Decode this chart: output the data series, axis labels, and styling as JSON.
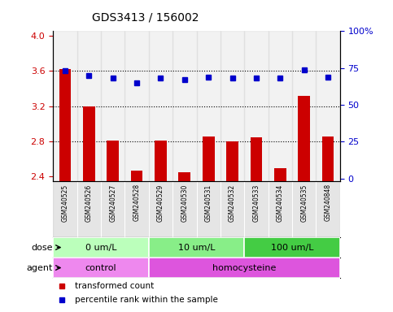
{
  "title": "GDS3413 / 156002",
  "samples": [
    "GSM240525",
    "GSM240526",
    "GSM240527",
    "GSM240528",
    "GSM240529",
    "GSM240530",
    "GSM240531",
    "GSM240532",
    "GSM240533",
    "GSM240534",
    "GSM240535",
    "GSM240848"
  ],
  "transformed_count": [
    3.62,
    3.2,
    2.81,
    2.47,
    2.81,
    2.45,
    2.86,
    2.8,
    2.85,
    2.5,
    3.32,
    2.86
  ],
  "percentile_rank": [
    73,
    70,
    68,
    65,
    68,
    67,
    69,
    68,
    68,
    68,
    74,
    69
  ],
  "ylim_left": [
    2.35,
    4.05
  ],
  "ylim_right": [
    -1.75,
    100
  ],
  "yticks_left": [
    2.4,
    2.8,
    3.2,
    3.6,
    4.0
  ],
  "yticks_right": [
    0,
    25,
    50,
    75,
    100
  ],
  "bar_color": "#cc0000",
  "dot_color": "#0000cc",
  "dose_groups": [
    {
      "label": "0 um/L",
      "start": 0,
      "end": 3,
      "color": "#bbffbb"
    },
    {
      "label": "10 um/L",
      "start": 4,
      "end": 7,
      "color": "#88ee88"
    },
    {
      "label": "100 um/L",
      "start": 8,
      "end": 11,
      "color": "#44cc44"
    }
  ],
  "agent_groups": [
    {
      "label": "control",
      "start": 0,
      "end": 3,
      "color": "#ee88ee"
    },
    {
      "label": "homocysteine",
      "start": 4,
      "end": 11,
      "color": "#dd55dd"
    }
  ],
  "dose_label": "dose",
  "agent_label": "agent",
  "legend_red": "transformed count",
  "legend_blue": "percentile rank within the sample",
  "tick_color_left": "#cc0000",
  "tick_color_right": "#0000cc",
  "sample_bg_color": "#cccccc",
  "gridline_values": [
    3.6,
    3.2,
    2.8
  ],
  "bar_bottom": 0.0
}
